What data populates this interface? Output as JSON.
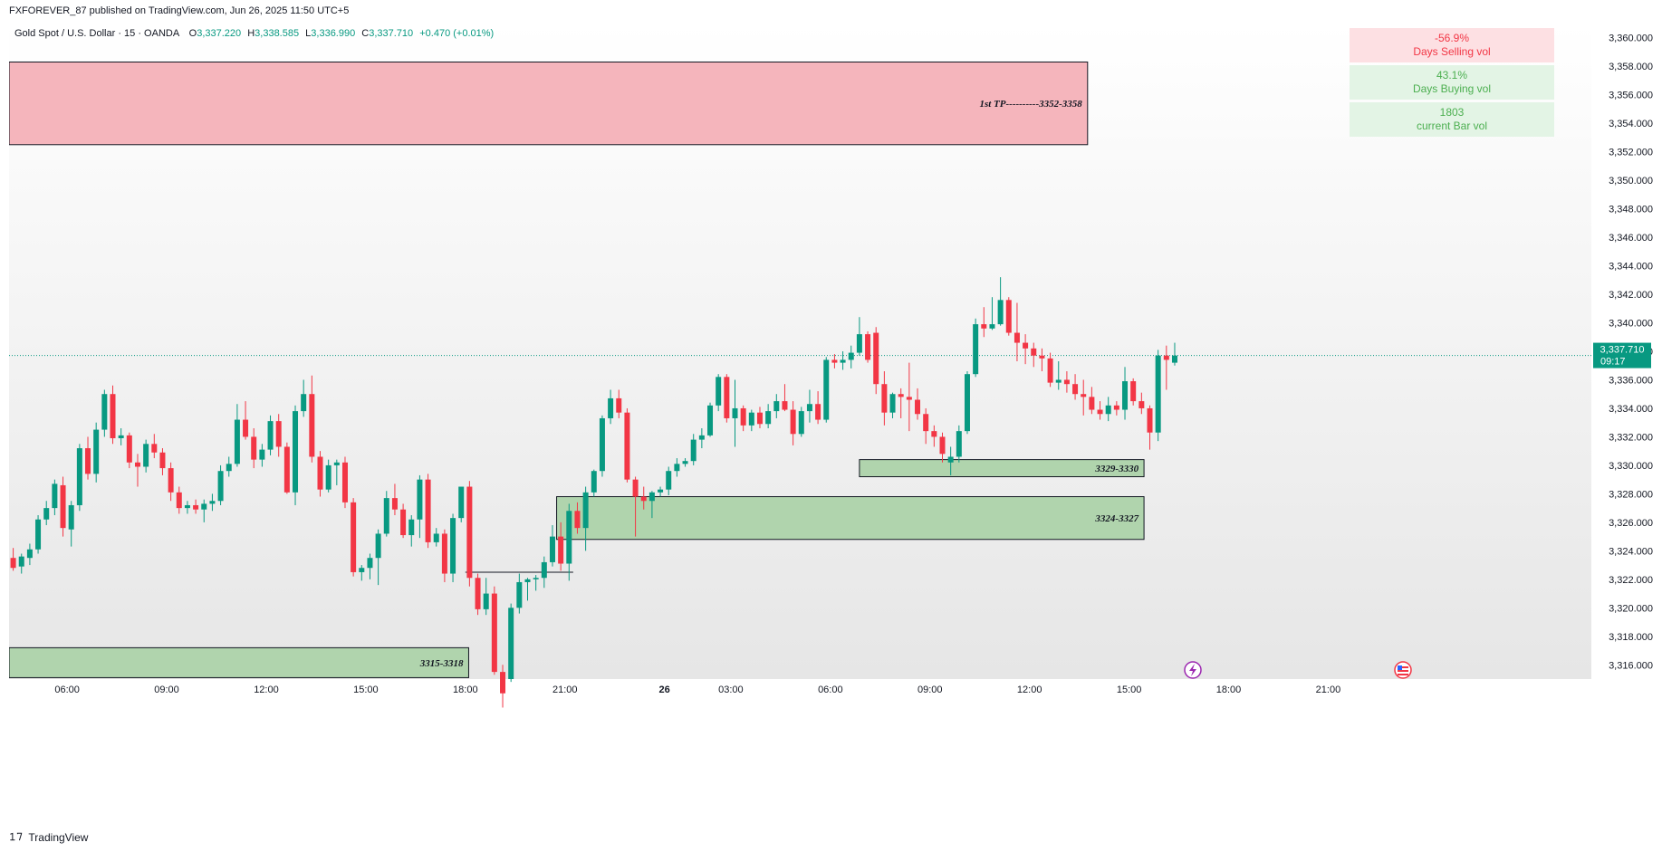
{
  "header": {
    "published_by": "FXFOREVER_87 published on TradingView.com, Jun 26, 2025 11:50 UTC+5"
  },
  "legend": {
    "symbol": "Gold Spot / U.S. Dollar · 15 · OANDA",
    "open_label": "O",
    "open": "3,337.220",
    "high_label": "H",
    "high": "3,338.585",
    "low_label": "L",
    "low": "3,336.990",
    "close_label": "C",
    "close": "3,337.710",
    "change": "+0.470 (+0.01%)"
  },
  "volume_table": [
    {
      "value": "-56.9%",
      "label": "Days Selling vol",
      "bg": "#fde0e3",
      "color": "#f23645"
    },
    {
      "value": "43.1%",
      "label": "Days Buying vol",
      "bg": "#e3f4e5",
      "color": "#4caf50"
    },
    {
      "value": "1803",
      "label": "current Bar vol",
      "bg": "#e3f4e5",
      "color": "#4caf50"
    }
  ],
  "price_tag": {
    "price": "3,337.710",
    "countdown": "09:17",
    "color": "#089981"
  },
  "footer": {
    "brand": "TradingView"
  },
  "colors": {
    "up": "#089981",
    "down": "#f23645",
    "zone_red": "#f5b5bc",
    "zone_green": "#b0d4ad"
  },
  "chart_data": {
    "type": "candlestick",
    "title": "Gold Spot / U.S. Dollar · 15 · OANDA",
    "y_axis": {
      "min": 3315,
      "max": 3361,
      "ticks": [
        3316,
        3318,
        3320,
        3322,
        3324,
        3326,
        3328,
        3330,
        3332,
        3334,
        3336,
        3338,
        3340,
        3342,
        3344,
        3346,
        3348,
        3350,
        3352,
        3354,
        3356,
        3358,
        3360
      ]
    },
    "x_axis": {
      "ticks": [
        {
          "label": "06:00",
          "bar": 7
        },
        {
          "label": "09:00",
          "bar": 19
        },
        {
          "label": "12:00",
          "bar": 31
        },
        {
          "label": "15:00",
          "bar": 43
        },
        {
          "label": "18:00",
          "bar": 55
        },
        {
          "label": "21:00",
          "bar": 67
        },
        {
          "label": "26",
          "bar": 79
        },
        {
          "label": "03:00",
          "bar": 87
        },
        {
          "label": "06:00",
          "bar": 99
        },
        {
          "label": "09:00",
          "bar": 111
        },
        {
          "label": "12:00",
          "bar": 123
        },
        {
          "label": "15:00",
          "bar": 135
        },
        {
          "label": "18:00",
          "bar": 147
        },
        {
          "label": "21:00",
          "bar": 159
        }
      ]
    },
    "zones": [
      {
        "label": "1st TP----------3352-3358",
        "low": 3352.5,
        "high": 3358.3,
        "start_bar": 0,
        "end_bar": 130,
        "color": "red"
      },
      {
        "label": "3329-3330",
        "low": 3329.2,
        "high": 3330.4,
        "start_bar": 102.5,
        "end_bar": 136.8,
        "color": "green"
      },
      {
        "label": "3324-3327",
        "low": 3324.8,
        "high": 3327.8,
        "start_bar": 66,
        "end_bar": 136.8,
        "color": "green"
      },
      {
        "label": "3315-3318",
        "low": 3315.1,
        "high": 3317.2,
        "start_bar": 0,
        "end_bar": 55.4,
        "color": "green"
      }
    ],
    "lines": [
      {
        "price": 3322.5,
        "start_bar": 55,
        "end_bar": 68
      }
    ],
    "current_price": 3337.71,
    "candles": [
      {
        "o": 3323.5,
        "h": 3324.2,
        "l": 3322.6,
        "c": 3322.8
      },
      {
        "o": 3322.9,
        "h": 3323.8,
        "l": 3322.4,
        "c": 3323.6
      },
      {
        "o": 3323.5,
        "h": 3324.5,
        "l": 3323.0,
        "c": 3324.1
      },
      {
        "o": 3324.1,
        "h": 3326.5,
        "l": 3323.8,
        "c": 3326.2
      },
      {
        "o": 3326.2,
        "h": 3327.5,
        "l": 3325.8,
        "c": 3327.0
      },
      {
        "o": 3327.0,
        "h": 3329.0,
        "l": 3326.5,
        "c": 3328.7
      },
      {
        "o": 3328.6,
        "h": 3329.2,
        "l": 3325.0,
        "c": 3325.6
      },
      {
        "o": 3325.5,
        "h": 3327.5,
        "l": 3324.3,
        "c": 3327.2
      },
      {
        "o": 3327.2,
        "h": 3331.5,
        "l": 3326.8,
        "c": 3331.2
      },
      {
        "o": 3331.2,
        "h": 3332.0,
        "l": 3329.0,
        "c": 3329.4
      },
      {
        "o": 3329.4,
        "h": 3333.0,
        "l": 3328.8,
        "c": 3332.5
      },
      {
        "o": 3332.5,
        "h": 3335.3,
        "l": 3332.0,
        "c": 3335.0
      },
      {
        "o": 3335.0,
        "h": 3335.6,
        "l": 3331.5,
        "c": 3331.9
      },
      {
        "o": 3331.9,
        "h": 3332.6,
        "l": 3331.4,
        "c": 3332.1
      },
      {
        "o": 3332.1,
        "h": 3332.3,
        "l": 3329.8,
        "c": 3330.2
      },
      {
        "o": 3330.2,
        "h": 3330.8,
        "l": 3328.5,
        "c": 3329.9
      },
      {
        "o": 3329.9,
        "h": 3331.8,
        "l": 3329.5,
        "c": 3331.5
      },
      {
        "o": 3331.5,
        "h": 3332.2,
        "l": 3330.5,
        "c": 3330.9
      },
      {
        "o": 3330.9,
        "h": 3331.2,
        "l": 3329.3,
        "c": 3329.8
      },
      {
        "o": 3329.8,
        "h": 3330.2,
        "l": 3327.5,
        "c": 3328.1
      },
      {
        "o": 3328.1,
        "h": 3328.5,
        "l": 3326.6,
        "c": 3327.0
      },
      {
        "o": 3327.0,
        "h": 3327.5,
        "l": 3326.6,
        "c": 3327.2
      },
      {
        "o": 3327.2,
        "h": 3327.6,
        "l": 3326.6,
        "c": 3326.9
      },
      {
        "o": 3326.9,
        "h": 3327.6,
        "l": 3326.0,
        "c": 3327.3
      },
      {
        "o": 3327.3,
        "h": 3328.0,
        "l": 3326.8,
        "c": 3327.5
      },
      {
        "o": 3327.5,
        "h": 3330.0,
        "l": 3327.2,
        "c": 3329.6
      },
      {
        "o": 3329.6,
        "h": 3330.6,
        "l": 3329.2,
        "c": 3330.1
      },
      {
        "o": 3330.1,
        "h": 3334.3,
        "l": 3329.9,
        "c": 3333.2
      },
      {
        "o": 3333.2,
        "h": 3334.5,
        "l": 3331.8,
        "c": 3332.0
      },
      {
        "o": 3332.0,
        "h": 3332.6,
        "l": 3329.8,
        "c": 3330.4
      },
      {
        "o": 3330.4,
        "h": 3331.5,
        "l": 3329.9,
        "c": 3331.1
      },
      {
        "o": 3331.1,
        "h": 3333.5,
        "l": 3330.7,
        "c": 3333.1
      },
      {
        "o": 3333.1,
        "h": 3333.6,
        "l": 3330.6,
        "c": 3331.3
      },
      {
        "o": 3331.3,
        "h": 3331.6,
        "l": 3328.0,
        "c": 3328.1
      },
      {
        "o": 3328.1,
        "h": 3334.2,
        "l": 3327.2,
        "c": 3333.8
      },
      {
        "o": 3333.8,
        "h": 3336.0,
        "l": 3333.4,
        "c": 3335.0
      },
      {
        "o": 3335.0,
        "h": 3336.3,
        "l": 3330.2,
        "c": 3330.6
      },
      {
        "o": 3330.6,
        "h": 3331.0,
        "l": 3327.8,
        "c": 3328.3
      },
      {
        "o": 3328.3,
        "h": 3330.4,
        "l": 3328.1,
        "c": 3330.0
      },
      {
        "o": 3330.0,
        "h": 3330.4,
        "l": 3328.6,
        "c": 3330.2
      },
      {
        "o": 3330.2,
        "h": 3330.6,
        "l": 3327.0,
        "c": 3327.4
      },
      {
        "o": 3327.4,
        "h": 3327.7,
        "l": 3322.2,
        "c": 3322.5
      },
      {
        "o": 3322.5,
        "h": 3323.0,
        "l": 3321.9,
        "c": 3322.8
      },
      {
        "o": 3322.8,
        "h": 3323.8,
        "l": 3322.0,
        "c": 3323.5
      },
      {
        "o": 3323.5,
        "h": 3325.5,
        "l": 3321.6,
        "c": 3325.2
      },
      {
        "o": 3325.2,
        "h": 3328.2,
        "l": 3325.0,
        "c": 3327.7
      },
      {
        "o": 3327.7,
        "h": 3328.7,
        "l": 3326.5,
        "c": 3326.9
      },
      {
        "o": 3326.9,
        "h": 3327.3,
        "l": 3324.9,
        "c": 3325.1
      },
      {
        "o": 3325.1,
        "h": 3326.5,
        "l": 3324.3,
        "c": 3326.2
      },
      {
        "o": 3326.2,
        "h": 3329.3,
        "l": 3324.9,
        "c": 3329.0
      },
      {
        "o": 3329.0,
        "h": 3329.4,
        "l": 3324.2,
        "c": 3324.6
      },
      {
        "o": 3324.6,
        "h": 3325.6,
        "l": 3324.3,
        "c": 3325.2
      },
      {
        "o": 3325.2,
        "h": 3325.5,
        "l": 3321.8,
        "c": 3322.4
      },
      {
        "o": 3322.4,
        "h": 3326.6,
        "l": 3321.8,
        "c": 3326.3
      },
      {
        "o": 3326.3,
        "h": 3328.5,
        "l": 3326.0,
        "c": 3328.5
      },
      {
        "o": 3328.5,
        "h": 3328.9,
        "l": 3321.5,
        "c": 3322.1
      },
      {
        "o": 3322.1,
        "h": 3322.4,
        "l": 3319.5,
        "c": 3319.9
      },
      {
        "o": 3319.9,
        "h": 3322.1,
        "l": 3319.5,
        "c": 3321.0
      },
      {
        "o": 3321.0,
        "h": 3321.5,
        "l": 3315.3,
        "c": 3315.5
      },
      {
        "o": 3315.5,
        "h": 3316.0,
        "l": 3313.0,
        "c": 3314.0
      },
      {
        "o": 3315.0,
        "h": 3320.3,
        "l": 3314.8,
        "c": 3320.0
      },
      {
        "o": 3320.0,
        "h": 3322.4,
        "l": 3319.6,
        "c": 3321.8
      },
      {
        "o": 3321.8,
        "h": 3322.1,
        "l": 3320.5,
        "c": 3322.0
      },
      {
        "o": 3322.0,
        "h": 3322.3,
        "l": 3321.2,
        "c": 3322.1
      },
      {
        "o": 3322.1,
        "h": 3323.6,
        "l": 3321.4,
        "c": 3323.2
      },
      {
        "o": 3323.2,
        "h": 3325.8,
        "l": 3322.9,
        "c": 3325.0
      },
      {
        "o": 3325.0,
        "h": 3326.0,
        "l": 3322.6,
        "c": 3323.1
      },
      {
        "o": 3323.1,
        "h": 3327.3,
        "l": 3321.9,
        "c": 3326.8
      },
      {
        "o": 3326.8,
        "h": 3327.4,
        "l": 3325.2,
        "c": 3325.6
      },
      {
        "o": 3325.6,
        "h": 3328.5,
        "l": 3324.0,
        "c": 3328.1
      },
      {
        "o": 3328.1,
        "h": 3329.7,
        "l": 3327.8,
        "c": 3329.6
      },
      {
        "o": 3329.6,
        "h": 3333.5,
        "l": 3329.2,
        "c": 3333.3
      },
      {
        "o": 3333.3,
        "h": 3335.3,
        "l": 3332.9,
        "c": 3334.7
      },
      {
        "o": 3334.7,
        "h": 3335.3,
        "l": 3333.3,
        "c": 3333.7
      },
      {
        "o": 3333.7,
        "h": 3334.0,
        "l": 3328.8,
        "c": 3329.0
      },
      {
        "o": 3329.0,
        "h": 3329.2,
        "l": 3325.0,
        "c": 3327.8
      },
      {
        "o": 3327.8,
        "h": 3328.5,
        "l": 3326.9,
        "c": 3327.5
      },
      {
        "o": 3327.5,
        "h": 3328.2,
        "l": 3326.3,
        "c": 3328.1
      },
      {
        "o": 3328.1,
        "h": 3328.5,
        "l": 3327.8,
        "c": 3328.3
      },
      {
        "o": 3328.3,
        "h": 3329.9,
        "l": 3327.9,
        "c": 3329.6
      },
      {
        "o": 3329.6,
        "h": 3330.5,
        "l": 3329.2,
        "c": 3330.1
      },
      {
        "o": 3330.1,
        "h": 3330.5,
        "l": 3329.9,
        "c": 3330.3
      },
      {
        "o": 3330.3,
        "h": 3332.2,
        "l": 3330.0,
        "c": 3331.8
      },
      {
        "o": 3331.8,
        "h": 3332.6,
        "l": 3331.2,
        "c": 3332.1
      },
      {
        "o": 3332.1,
        "h": 3334.4,
        "l": 3332.0,
        "c": 3334.2
      },
      {
        "o": 3334.2,
        "h": 3336.4,
        "l": 3333.8,
        "c": 3336.2
      },
      {
        "o": 3336.2,
        "h": 3336.4,
        "l": 3333.0,
        "c": 3333.3
      },
      {
        "o": 3333.3,
        "h": 3336.0,
        "l": 3331.3,
        "c": 3334.0
      },
      {
        "o": 3334.0,
        "h": 3334.2,
        "l": 3332.4,
        "c": 3332.8
      },
      {
        "o": 3332.8,
        "h": 3333.9,
        "l": 3332.4,
        "c": 3333.7
      },
      {
        "o": 3333.7,
        "h": 3334.1,
        "l": 3332.6,
        "c": 3332.9
      },
      {
        "o": 3332.9,
        "h": 3334.3,
        "l": 3332.6,
        "c": 3333.8
      },
      {
        "o": 3333.8,
        "h": 3335.0,
        "l": 3333.3,
        "c": 3334.5
      },
      {
        "o": 3334.5,
        "h": 3335.7,
        "l": 3333.8,
        "c": 3333.9
      },
      {
        "o": 3333.9,
        "h": 3334.5,
        "l": 3331.4,
        "c": 3332.2
      },
      {
        "o": 3332.2,
        "h": 3334.1,
        "l": 3332.0,
        "c": 3333.8
      },
      {
        "o": 3333.8,
        "h": 3335.3,
        "l": 3333.0,
        "c": 3334.3
      },
      {
        "o": 3334.3,
        "h": 3335.2,
        "l": 3332.9,
        "c": 3333.2
      },
      {
        "o": 3333.2,
        "h": 3337.6,
        "l": 3333.0,
        "c": 3337.4
      },
      {
        "o": 3337.4,
        "h": 3337.8,
        "l": 3336.8,
        "c": 3337.2
      },
      {
        "o": 3337.2,
        "h": 3338.0,
        "l": 3336.7,
        "c": 3337.4
      },
      {
        "o": 3337.4,
        "h": 3338.4,
        "l": 3336.8,
        "c": 3337.9
      },
      {
        "o": 3337.9,
        "h": 3340.4,
        "l": 3337.7,
        "c": 3339.2
      },
      {
        "o": 3339.2,
        "h": 3339.4,
        "l": 3337.2,
        "c": 3337.4
      },
      {
        "o": 3339.3,
        "h": 3339.7,
        "l": 3335.0,
        "c": 3335.7
      },
      {
        "o": 3335.7,
        "h": 3336.6,
        "l": 3332.8,
        "c": 3333.7
      },
      {
        "o": 3333.7,
        "h": 3335.1,
        "l": 3333.3,
        "c": 3335.0
      },
      {
        "o": 3335.0,
        "h": 3335.4,
        "l": 3333.3,
        "c": 3334.8
      },
      {
        "o": 3334.8,
        "h": 3337.2,
        "l": 3332.4,
        "c": 3334.6
      },
      {
        "o": 3334.6,
        "h": 3335.4,
        "l": 3333.2,
        "c": 3333.6
      },
      {
        "o": 3333.6,
        "h": 3334.0,
        "l": 3331.5,
        "c": 3332.4
      },
      {
        "o": 3332.4,
        "h": 3332.8,
        "l": 3331.3,
        "c": 3332.0
      },
      {
        "o": 3332.0,
        "h": 3332.3,
        "l": 3330.2,
        "c": 3330.8
      },
      {
        "o": 3330.2,
        "h": 3331.3,
        "l": 3329.3,
        "c": 3330.6
      },
      {
        "o": 3330.6,
        "h": 3332.8,
        "l": 3330.2,
        "c": 3332.4
      },
      {
        "o": 3332.4,
        "h": 3336.6,
        "l": 3332.2,
        "c": 3336.4
      },
      {
        "o": 3336.4,
        "h": 3340.3,
        "l": 3336.2,
        "c": 3339.9
      },
      {
        "o": 3339.9,
        "h": 3341.1,
        "l": 3339.0,
        "c": 3339.6
      },
      {
        "o": 3339.6,
        "h": 3341.8,
        "l": 3339.5,
        "c": 3339.9
      },
      {
        "o": 3339.9,
        "h": 3343.2,
        "l": 3339.8,
        "c": 3341.6
      },
      {
        "o": 3341.6,
        "h": 3341.8,
        "l": 3339.1,
        "c": 3339.3
      },
      {
        "o": 3339.3,
        "h": 3341.4,
        "l": 3337.3,
        "c": 3338.6
      },
      {
        "o": 3338.6,
        "h": 3339.2,
        "l": 3337.1,
        "c": 3338.2
      },
      {
        "o": 3338.2,
        "h": 3338.6,
        "l": 3336.9,
        "c": 3337.7
      },
      {
        "o": 3337.7,
        "h": 3338.2,
        "l": 3336.6,
        "c": 3337.5
      },
      {
        "o": 3337.5,
        "h": 3337.9,
        "l": 3335.5,
        "c": 3335.8
      },
      {
        "o": 3335.8,
        "h": 3337.3,
        "l": 3335.3,
        "c": 3336.0
      },
      {
        "o": 3336.0,
        "h": 3336.6,
        "l": 3335.1,
        "c": 3335.7
      },
      {
        "o": 3335.7,
        "h": 3336.4,
        "l": 3334.6,
        "c": 3335.0
      },
      {
        "o": 3335.0,
        "h": 3336.0,
        "l": 3333.5,
        "c": 3334.8
      },
      {
        "o": 3334.8,
        "h": 3335.5,
        "l": 3333.6,
        "c": 3333.9
      },
      {
        "o": 3333.9,
        "h": 3334.5,
        "l": 3333.2,
        "c": 3333.6
      },
      {
        "o": 3333.6,
        "h": 3334.8,
        "l": 3333.1,
        "c": 3334.2
      },
      {
        "o": 3334.2,
        "h": 3334.5,
        "l": 3333.5,
        "c": 3333.9
      },
      {
        "o": 3333.9,
        "h": 3336.9,
        "l": 3333.2,
        "c": 3335.9
      },
      {
        "o": 3335.9,
        "h": 3336.1,
        "l": 3334.2,
        "c": 3334.5
      },
      {
        "o": 3334.5,
        "h": 3335.1,
        "l": 3333.6,
        "c": 3334.0
      },
      {
        "o": 3334.0,
        "h": 3334.2,
        "l": 3331.1,
        "c": 3332.3
      },
      {
        "o": 3332.3,
        "h": 3338.1,
        "l": 3331.7,
        "c": 3337.7
      },
      {
        "o": 3337.7,
        "h": 3338.4,
        "l": 3335.3,
        "c": 3337.4
      },
      {
        "o": 3337.2,
        "h": 3338.6,
        "l": 3337.0,
        "c": 3337.7
      }
    ]
  }
}
